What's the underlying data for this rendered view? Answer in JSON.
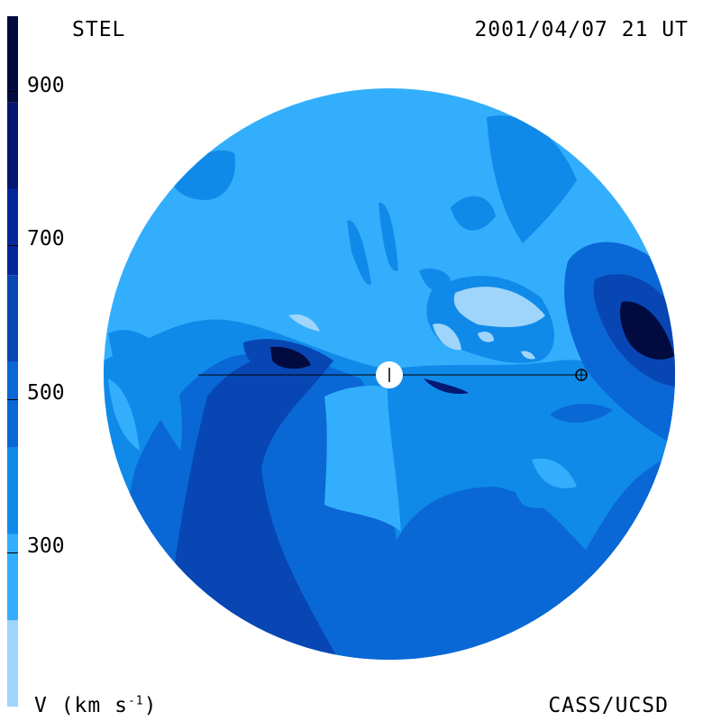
{
  "header": {
    "observatory": "STEL",
    "datetime": "2001/04/07 21 UT"
  },
  "footer": {
    "unit_label_prefix": "V (km s",
    "unit_label_sup": "-1",
    "unit_label_suffix": ")",
    "credit": "CASS/UCSD"
  },
  "colorbar": {
    "ticks": [
      "900",
      "700",
      "500",
      "300"
    ],
    "tick_values": [
      900,
      700,
      500,
      300
    ],
    "range": [
      200,
      1000
    ],
    "colors": [
      "#9fd5fb",
      "#33aefc",
      "#0f8ae9",
      "#0a67d6",
      "#0846b3",
      "#06269a",
      "#041771",
      "#020b40"
    ],
    "band_edges": [
      200,
      300,
      400,
      500,
      600,
      700,
      800,
      900,
      1000
    ]
  },
  "map": {
    "sun_marker": "sun-icon",
    "earth_marker": "earth-icon"
  }
}
